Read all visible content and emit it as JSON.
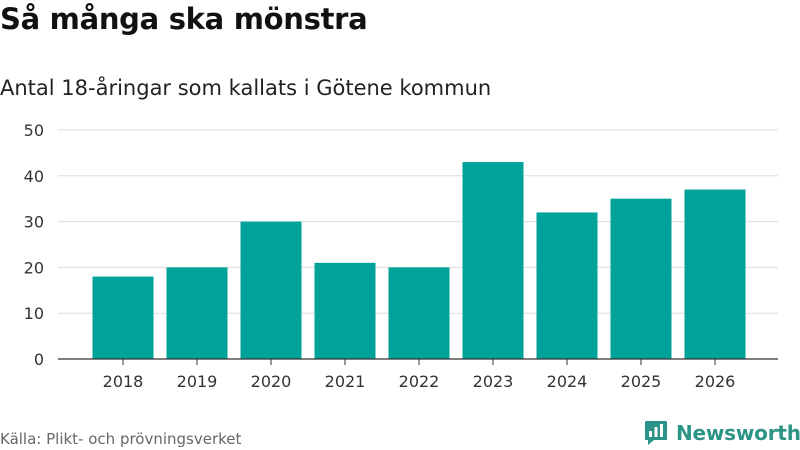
{
  "header": {
    "title": "Så många ska mönstra",
    "subtitle": "Antal 18-åringar som kallats i Götene kommun"
  },
  "footer": {
    "source": "Källa: Plikt- och prövningsverket",
    "brand": "Newsworthy"
  },
  "colors": {
    "bar": "#00a39a",
    "grid": "#dddddd",
    "axis": "#333333",
    "brand": "#2b9486"
  },
  "icons": {
    "brand": "newsworthy-logo-icon"
  },
  "chart_data": {
    "type": "bar",
    "title": "Så många ska mönstra",
    "subtitle": "Antal 18-åringar som kallats i Götene kommun",
    "xlabel": "",
    "ylabel": "",
    "categories": [
      "2018",
      "2019",
      "2020",
      "2021",
      "2022",
      "2023",
      "2024",
      "2025",
      "2026"
    ],
    "values": [
      18,
      20,
      30,
      21,
      20,
      43,
      32,
      35,
      37
    ],
    "ylim": [
      0,
      50
    ],
    "yticks": [
      0,
      10,
      20,
      30,
      40,
      50
    ],
    "grid": true,
    "legend": "none"
  }
}
